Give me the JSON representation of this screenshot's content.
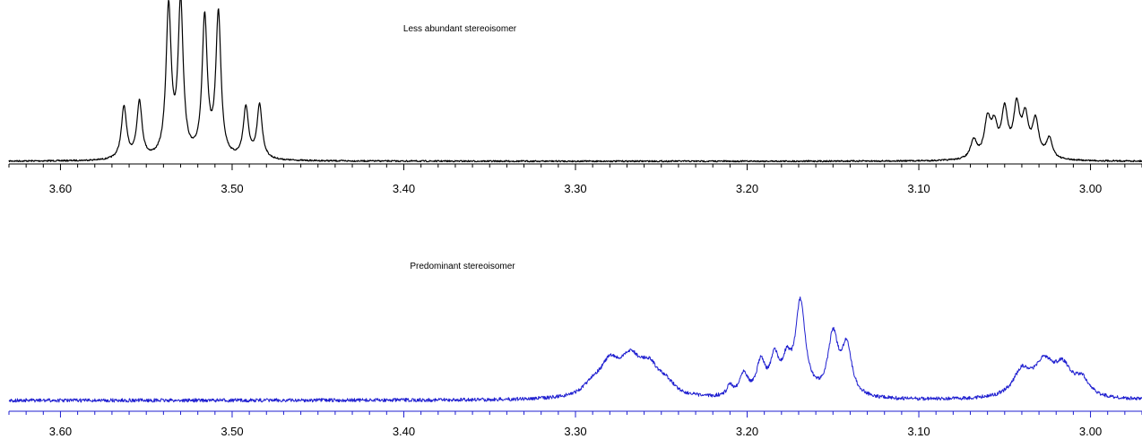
{
  "chart_data": [
    {
      "type": "line",
      "title": "Less abundant stereoisomer",
      "xlabel": "",
      "ylabel": "",
      "color": "#000000",
      "axis_color": "#000000",
      "xlim": [
        3.63,
        2.97
      ],
      "x_reversed": true,
      "ticks": [
        "3.60",
        "3.50",
        "3.40",
        "3.30",
        "3.20",
        "3.10",
        "3.00"
      ],
      "grid": false,
      "peaks": [
        {
          "x": 3.563,
          "y": 0.34,
          "w": 0.0018
        },
        {
          "x": 3.554,
          "y": 0.37,
          "w": 0.0018
        },
        {
          "x": 3.537,
          "y": 0.97,
          "w": 0.0018
        },
        {
          "x": 3.53,
          "y": 1.0,
          "w": 0.0018
        },
        {
          "x": 3.516,
          "y": 0.9,
          "w": 0.0018
        },
        {
          "x": 3.508,
          "y": 0.93,
          "w": 0.0018
        },
        {
          "x": 3.492,
          "y": 0.33,
          "w": 0.0018
        },
        {
          "x": 3.484,
          "y": 0.35,
          "w": 0.0018
        },
        {
          "x": 3.068,
          "y": 0.12,
          "w": 0.0022
        },
        {
          "x": 3.06,
          "y": 0.24,
          "w": 0.0022
        },
        {
          "x": 3.056,
          "y": 0.19,
          "w": 0.0022
        },
        {
          "x": 3.05,
          "y": 0.3,
          "w": 0.0022
        },
        {
          "x": 3.043,
          "y": 0.32,
          "w": 0.0022
        },
        {
          "x": 3.038,
          "y": 0.25,
          "w": 0.0022
        },
        {
          "x": 3.032,
          "y": 0.24,
          "w": 0.0022
        },
        {
          "x": 3.024,
          "y": 0.13,
          "w": 0.0022
        }
      ]
    },
    {
      "type": "line",
      "title": "Predominant stereoisomer",
      "xlabel": "",
      "ylabel": "",
      "color": "#1f1fd0",
      "axis_color": "#1f1fd0",
      "xlim": [
        3.63,
        2.97
      ],
      "x_reversed": true,
      "ticks": [
        "3.60",
        "3.50",
        "3.40",
        "3.30",
        "3.20",
        "3.10",
        "3.00"
      ],
      "grid": false,
      "peaks": [
        {
          "x": 3.29,
          "y": 0.1,
          "w": 0.006
        },
        {
          "x": 3.28,
          "y": 0.3,
          "w": 0.007
        },
        {
          "x": 3.268,
          "y": 0.32,
          "w": 0.007
        },
        {
          "x": 3.257,
          "y": 0.26,
          "w": 0.007
        },
        {
          "x": 3.247,
          "y": 0.1,
          "w": 0.006
        },
        {
          "x": 3.21,
          "y": 0.1,
          "w": 0.002
        },
        {
          "x": 3.202,
          "y": 0.22,
          "w": 0.003
        },
        {
          "x": 3.192,
          "y": 0.32,
          "w": 0.003
        },
        {
          "x": 3.184,
          "y": 0.35,
          "w": 0.003
        },
        {
          "x": 3.177,
          "y": 0.28,
          "w": 0.003
        },
        {
          "x": 3.169,
          "y": 0.9,
          "w": 0.0035
        },
        {
          "x": 3.15,
          "y": 0.58,
          "w": 0.0035
        },
        {
          "x": 3.142,
          "y": 0.48,
          "w": 0.0035
        },
        {
          "x": 3.04,
          "y": 0.24,
          "w": 0.006
        },
        {
          "x": 3.027,
          "y": 0.32,
          "w": 0.007
        },
        {
          "x": 3.016,
          "y": 0.26,
          "w": 0.006
        },
        {
          "x": 3.005,
          "y": 0.16,
          "w": 0.005
        }
      ]
    }
  ]
}
